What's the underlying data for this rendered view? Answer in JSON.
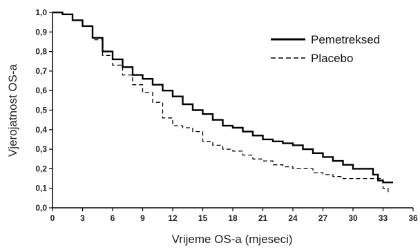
{
  "chart_data": {
    "type": "line",
    "xlabel": "Vrijeme OS-a (mjeseci)",
    "ylabel": "Vjerojatnost OS-a",
    "xlim": [
      0,
      36
    ],
    "ylim": [
      0,
      1
    ],
    "xticks": [
      "0",
      "3",
      "6",
      "9",
      "12",
      "15",
      "18",
      "21",
      "24",
      "27",
      "30",
      "33",
      "36"
    ],
    "yticks": [
      "0,0",
      "0,1",
      "0,2",
      "0,3",
      "0,4",
      "0,5",
      "0,6",
      "0,7",
      "0,8",
      "0,9",
      "1,0"
    ],
    "grid": false,
    "legend": "top-right",
    "series": [
      {
        "name": "Pemetreksed",
        "style": "solid",
        "color": "#000000",
        "x": [
          0,
          1,
          2,
          3,
          4,
          5,
          6,
          7,
          8,
          9,
          10,
          11,
          12,
          13,
          14,
          15,
          16,
          17,
          18,
          19,
          20,
          21,
          22,
          23,
          24,
          25,
          26,
          27,
          28,
          29,
          30,
          31,
          32,
          32.5,
          33,
          34
        ],
        "y": [
          1.0,
          0.99,
          0.96,
          0.93,
          0.87,
          0.8,
          0.76,
          0.72,
          0.68,
          0.66,
          0.63,
          0.6,
          0.57,
          0.53,
          0.5,
          0.48,
          0.45,
          0.42,
          0.41,
          0.39,
          0.37,
          0.35,
          0.34,
          0.33,
          0.32,
          0.3,
          0.28,
          0.26,
          0.24,
          0.22,
          0.2,
          0.2,
          0.17,
          0.14,
          0.13,
          0.13
        ]
      },
      {
        "name": "Placebo",
        "style": "dashed",
        "color": "#000000",
        "x": [
          0,
          1,
          2,
          3,
          4,
          5,
          6,
          7,
          8,
          9,
          10,
          11,
          12,
          13,
          14,
          15,
          16,
          17,
          18,
          19,
          20,
          21,
          22,
          23,
          24,
          25,
          26,
          27,
          28,
          29,
          30,
          31,
          32,
          33,
          33.5
        ],
        "y": [
          1.0,
          0.99,
          0.96,
          0.93,
          0.86,
          0.78,
          0.73,
          0.68,
          0.63,
          0.59,
          0.54,
          0.46,
          0.42,
          0.41,
          0.39,
          0.34,
          0.32,
          0.3,
          0.29,
          0.27,
          0.25,
          0.24,
          0.22,
          0.21,
          0.2,
          0.2,
          0.18,
          0.17,
          0.16,
          0.15,
          0.15,
          0.15,
          0.15,
          0.1,
          0.08
        ]
      }
    ]
  }
}
